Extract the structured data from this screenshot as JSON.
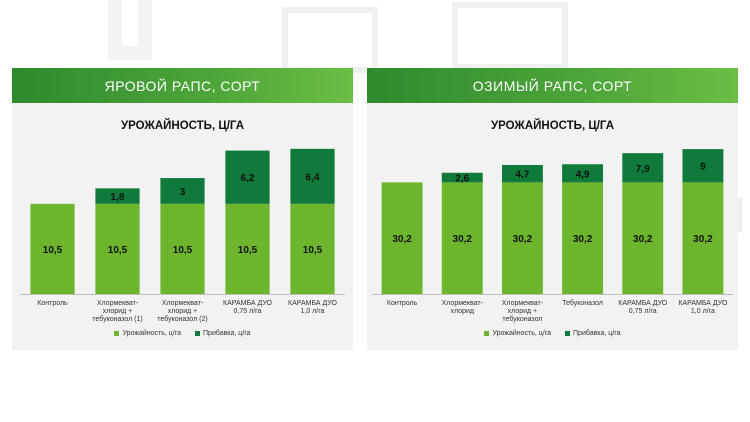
{
  "colors": {
    "base": "#6cb52d",
    "increment": "#0f7a3a",
    "header": "#3f9a33"
  },
  "panels": [
    {
      "header": "ЯРОВОЙ РАПС, СОРТ",
      "title": "УРОЖАЙНОСТЬ,  Ц/ГА",
      "legend": {
        "series1": "Урожайность, ц/га",
        "series2": "Прибавка, ц/га"
      }
    },
    {
      "header": "ОЗИМЫЙ РАПС, СОРТ",
      "title": "УРОЖАЙНОСТЬ,  Ц/ГА",
      "legend": {
        "series1": "Урожайность, ц/га",
        "series2": "Прибавка, ц/га"
      }
    }
  ],
  "chart_data": [
    {
      "type": "bar",
      "stacked": true,
      "categories": [
        [
          "Контроль"
        ],
        [
          "Хлормекват-",
          "хлорид +",
          "тебуконазол (1)"
        ],
        [
          "Хлормекват-",
          "хлорид +",
          "тебуконазол (2)"
        ],
        [
          "КАРАМБА  ДУО",
          "0,75 л/га"
        ],
        [
          "КАРАМБА  ДУО",
          "1,0 л/га"
        ]
      ],
      "series": [
        {
          "name": "Урожайность, ц/га",
          "values": [
            10.5,
            10.5,
            10.5,
            10.5,
            10.5
          ],
          "labels": [
            "10,5",
            "10,5",
            "10,5",
            "10,5",
            "10,5"
          ]
        },
        {
          "name": "Прибавка, ц/га",
          "values": [
            0,
            1.8,
            3,
            6.2,
            6.4
          ],
          "labels": [
            "",
            "1,8",
            "3",
            "6,2",
            "6,4"
          ]
        }
      ],
      "ylim": [
        0,
        17
      ],
      "legend": "bottom"
    },
    {
      "type": "bar",
      "stacked": true,
      "categories": [
        [
          "Контроль"
        ],
        [
          "Хлормекват-",
          "хлорид"
        ],
        [
          "Хлормекват-",
          "хлорид +",
          "тебуконазол"
        ],
        [
          "Тебуконазол"
        ],
        [
          "КАРАМБА  ДУО",
          "0,75 л/га"
        ],
        [
          "КАРАМБА  ДУО",
          "1,0 л/га"
        ]
      ],
      "series": [
        {
          "name": "Урожайность, ц/га",
          "values": [
            30.2,
            30.2,
            30.2,
            30.2,
            30.2,
            30.2
          ],
          "labels": [
            "30,2",
            "30,2",
            "30,2",
            "30,2",
            "30,2",
            "30,2"
          ]
        },
        {
          "name": "Прибавка, ц/га",
          "values": [
            0,
            2.6,
            4.7,
            4.9,
            7.9,
            9
          ],
          "labels": [
            "",
            "2,6",
            "4,7",
            "4,9",
            "7,9",
            "9"
          ]
        }
      ],
      "ylim": [
        0,
        39.5
      ],
      "legend": "bottom"
    }
  ]
}
